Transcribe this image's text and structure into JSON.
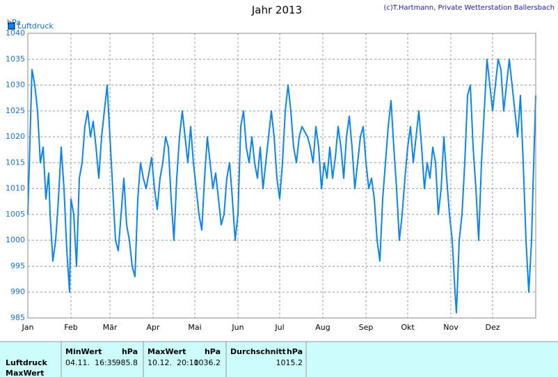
{
  "chart_data": {
    "type": "line",
    "title": "Jahr 2013",
    "ylabel": "hPa",
    "x": [
      0,
      3,
      5,
      7,
      9,
      11,
      13,
      15,
      16,
      18,
      20,
      22,
      24,
      26,
      28,
      30,
      31,
      33,
      35,
      37,
      39,
      41,
      43,
      45,
      47,
      49,
      51,
      53,
      55,
      57,
      59,
      61,
      63,
      65,
      67,
      69,
      71,
      73,
      75,
      77,
      79,
      81,
      83,
      85,
      87,
      89,
      91,
      93,
      95,
      97,
      99,
      101,
      103,
      105,
      107,
      109,
      111,
      113,
      115,
      117,
      119,
      121,
      123,
      125,
      127,
      129,
      131,
      133,
      135,
      137,
      139,
      141,
      143,
      145,
      147,
      149,
      151,
      153,
      155,
      157,
      159,
      161,
      163,
      165,
      167,
      169,
      171,
      173,
      175,
      177,
      179,
      181,
      183,
      185,
      187,
      189,
      191,
      193,
      195,
      197,
      199,
      201,
      203,
      205,
      207,
      209,
      211,
      213,
      215,
      217,
      219,
      221,
      223,
      225,
      227,
      229,
      231,
      233,
      235,
      237,
      239,
      241,
      243,
      245,
      247,
      249,
      251,
      253,
      255,
      257,
      259,
      261,
      263,
      265,
      267,
      269,
      271,
      273,
      275,
      277,
      279,
      281,
      283,
      285,
      287,
      289,
      291,
      293,
      295,
      297,
      299,
      301,
      303,
      305,
      307,
      308,
      310,
      312,
      314,
      316,
      318,
      320,
      322,
      324,
      326,
      328,
      330,
      332,
      334,
      336,
      338,
      340,
      342,
      344,
      346,
      348,
      350,
      352,
      354,
      356,
      358,
      360,
      362,
      363,
      365
    ],
    "series": [
      {
        "name": "Luftdruck",
        "color": "#0a84f0",
        "values": [
          1005,
          1033,
          1030,
          1025,
          1015,
          1018,
          1008,
          1013,
          1005,
          996,
          1000,
          1008,
          1018,
          1010,
          998,
          990,
          1008,
          1005,
          995,
          1012,
          1015,
          1022,
          1025,
          1020,
          1023,
          1018,
          1012,
          1020,
          1025,
          1030,
          1020,
          1010,
          1000,
          998,
          1005,
          1012,
          1003,
          1000,
          995,
          993,
          1008,
          1015,
          1012,
          1010,
          1013,
          1016,
          1010,
          1006,
          1012,
          1015,
          1020,
          1018,
          1008,
          1000,
          1012,
          1020,
          1025,
          1020,
          1015,
          1022,
          1015,
          1010,
          1005,
          1002,
          1012,
          1020,
          1015,
          1010,
          1013,
          1008,
          1003,
          1005,
          1012,
          1015,
          1008,
          1000,
          1005,
          1022,
          1025,
          1018,
          1015,
          1020,
          1015,
          1012,
          1018,
          1010,
          1015,
          1020,
          1025,
          1020,
          1012,
          1008,
          1015,
          1025,
          1030,
          1025,
          1018,
          1015,
          1020,
          1022,
          1021,
          1020,
          1018,
          1015,
          1022,
          1018,
          1010,
          1015,
          1012,
          1018,
          1012,
          1016,
          1022,
          1018,
          1012,
          1020,
          1024,
          1018,
          1010,
          1015,
          1020,
          1022,
          1015,
          1010,
          1012,
          1008,
          1000,
          996,
          1008,
          1015,
          1022,
          1027,
          1018,
          1010,
          1000,
          1005,
          1012,
          1018,
          1022,
          1015,
          1020,
          1025,
          1018,
          1010,
          1015,
          1012,
          1018,
          1015,
          1005,
          1010,
          1020,
          1012,
          1005,
          1000,
          990,
          986,
          1000,
          1005,
          1015,
          1028,
          1030,
          1018,
          1010,
          1000,
          1015,
          1025,
          1035,
          1030,
          1025,
          1030,
          1035,
          1033,
          1025,
          1030,
          1035,
          1030,
          1025,
          1020,
          1028,
          1015,
          1000,
          990,
          1000,
          1010,
          1028
        ]
      }
    ],
    "xlim": [
      0,
      365
    ],
    "xticks": [
      {
        "value": 0,
        "label": "Jan"
      },
      {
        "value": 31,
        "label": "Feb"
      },
      {
        "value": 59,
        "label": "Mär"
      },
      {
        "value": 90,
        "label": "Apr"
      },
      {
        "value": 120,
        "label": "Mai"
      },
      {
        "value": 151,
        "label": "Jun"
      },
      {
        "value": 181,
        "label": "Jul"
      },
      {
        "value": 212,
        "label": "Aug"
      },
      {
        "value": 243,
        "label": "Sep"
      },
      {
        "value": 273,
        "label": "Okt"
      },
      {
        "value": 304,
        "label": "Nov"
      },
      {
        "value": 334,
        "label": "Dez"
      }
    ],
    "ylim": [
      985,
      1040
    ],
    "yticks": [
      985,
      990,
      995,
      1000,
      1005,
      1010,
      1015,
      1020,
      1025,
      1030,
      1035,
      1040
    ],
    "grid": true,
    "legend": "top-left"
  },
  "credit": "(c)T.Hartmann, Private Wetterstation Ballersbach",
  "table": {
    "columns": [
      {
        "name": "MinWert",
        "unit": "hPa"
      },
      {
        "name": "MaxWert",
        "unit": "hPa"
      },
      {
        "name": "Durchschnitt",
        "unit": "hPa"
      }
    ],
    "rows": [
      {
        "label": "Luftdruck",
        "cells": [
          "04.11.  16:35",
          "985.8",
          "10.12.  20:10",
          "1036.2",
          "1015.2"
        ]
      },
      {
        "label": "MaxWert"
      }
    ]
  }
}
